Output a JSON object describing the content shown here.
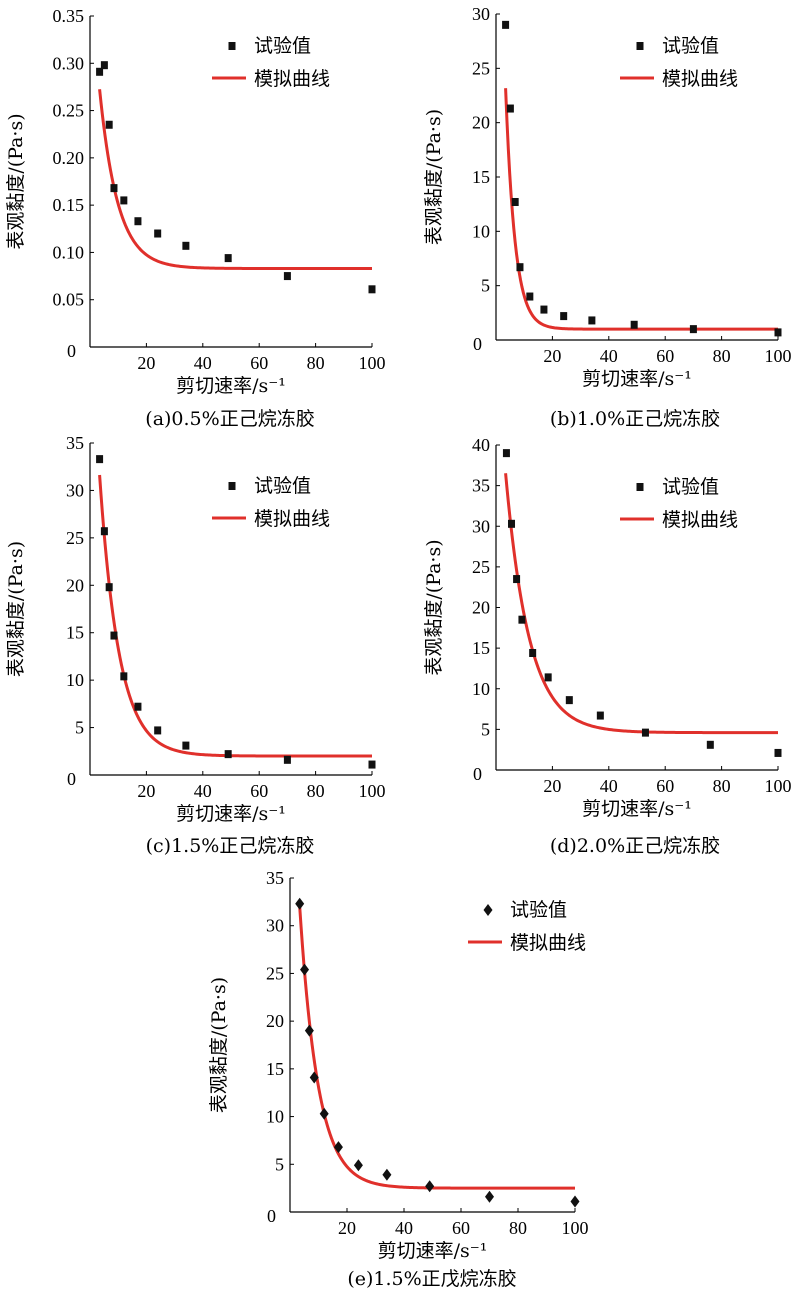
{
  "chart_data": [
    {
      "id": "a",
      "type": "scatter",
      "title": "",
      "caption": "(a)0.5%正己烷冻胶",
      "xlabel": "剪切速率/s⁻¹",
      "ylabel": "表观黏度/(Pa·s)",
      "xlim": [
        0,
        100
      ],
      "ylim": [
        0,
        0.35
      ],
      "xticks": [
        20,
        40,
        60,
        80,
        100
      ],
      "xtick_labels": [
        "20",
        "40",
        "60",
        "80",
        "100"
      ],
      "yticks": [
        0.05,
        0.1,
        0.15,
        0.2,
        0.25,
        0.3,
        0.35
      ],
      "ytick_labels": [
        "0.05",
        "0.10",
        "0.15",
        "0.20",
        "0.25",
        "0.30",
        "0.35"
      ],
      "origin_label": "0",
      "marker": "square",
      "series": [
        {
          "name": "试验值",
          "kind": "points",
          "x": [
            3.4,
            5.1,
            6.8,
            8.5,
            12.0,
            17.0,
            24.0,
            34.0,
            49.0,
            70.0,
            100.0
          ],
          "y": [
            0.291,
            0.298,
            0.235,
            0.168,
            0.155,
            0.133,
            0.12,
            0.107,
            0.094,
            0.075,
            0.061
          ]
        },
        {
          "name": "模拟曲线",
          "kind": "fit",
          "color": "#e0302b",
          "model": {
            "a": 0.083,
            "b": 0.321,
            "c": 0.155
          },
          "x_range": [
            3.4,
            100
          ]
        }
      ],
      "legend": [
        "试验值",
        "模拟曲线"
      ]
    },
    {
      "id": "b",
      "type": "scatter",
      "title": "",
      "caption": "(b)1.0%正己烷冻胶",
      "xlabel": "剪切速率/s⁻¹",
      "ylabel": "表观黏度/(Pa·s)",
      "xlim": [
        0,
        100
      ],
      "ylim": [
        0,
        30
      ],
      "xticks": [
        20,
        40,
        60,
        80,
        100
      ],
      "xtick_labels": [
        "20",
        "40",
        "60",
        "80",
        "100"
      ],
      "yticks": [
        5,
        10,
        15,
        20,
        25,
        30
      ],
      "ytick_labels": [
        "5",
        "10",
        "15",
        "20",
        "25",
        "30"
      ],
      "origin_label": "0",
      "marker": "square",
      "series": [
        {
          "name": "试验值",
          "kind": "points",
          "x": [
            3.4,
            5.1,
            6.8,
            8.5,
            12.0,
            17.0,
            24.0,
            34.0,
            49.0,
            70.0,
            100.0
          ],
          "y": [
            29.0,
            21.3,
            12.7,
            6.7,
            4.0,
            2.8,
            2.2,
            1.8,
            1.4,
            1.0,
            0.7
          ]
        },
        {
          "name": "模拟曲线",
          "kind": "fit",
          "color": "#e0302b",
          "model": {
            "a": 1.0,
            "b": 61.5,
            "c": 0.3
          },
          "x_range": [
            3.4,
            100
          ]
        }
      ],
      "legend": [
        "试验值",
        "模拟曲线"
      ]
    },
    {
      "id": "c",
      "type": "scatter",
      "title": "",
      "caption": "(c)1.5%正己烷冻胶",
      "xlabel": "剪切速率/s⁻¹",
      "ylabel": "表观黏度/(Pa·s)",
      "xlim": [
        0,
        100
      ],
      "ylim": [
        0,
        35
      ],
      "xticks": [
        20,
        40,
        60,
        80,
        100
      ],
      "xtick_labels": [
        "20",
        "40",
        "60",
        "80",
        "100"
      ],
      "yticks": [
        5,
        10,
        15,
        20,
        25,
        30,
        35
      ],
      "ytick_labels": [
        "5",
        "10",
        "15",
        "20",
        "25",
        "30",
        "35"
      ],
      "origin_label": "0",
      "marker": "square",
      "series": [
        {
          "name": "试验值",
          "kind": "points",
          "x": [
            3.4,
            5.1,
            6.8,
            8.5,
            12.0,
            17.0,
            24.0,
            34.0,
            49.0,
            70.0,
            100.0
          ],
          "y": [
            33.3,
            25.7,
            19.8,
            14.7,
            10.4,
            7.2,
            4.7,
            3.1,
            2.2,
            1.6,
            1.1
          ]
        },
        {
          "name": "模拟曲线",
          "kind": "fit",
          "color": "#e0302b",
          "model": {
            "a": 2.0,
            "b": 48.5,
            "c": 0.145
          },
          "x_range": [
            3.4,
            100
          ]
        }
      ],
      "legend": [
        "试验值",
        "模拟曲线"
      ]
    },
    {
      "id": "d",
      "type": "scatter",
      "title": "",
      "caption": "(d)2.0%正己烷冻胶",
      "xlabel": "剪切速率/s⁻¹",
      "ylabel": "表观黏度/(Pa·s)",
      "xlim": [
        0,
        100
      ],
      "ylim": [
        0,
        40
      ],
      "xticks": [
        20,
        40,
        60,
        80,
        100
      ],
      "xtick_labels": [
        "20",
        "40",
        "60",
        "80",
        "100"
      ],
      "yticks": [
        5,
        10,
        15,
        20,
        25,
        30,
        35,
        40
      ],
      "ytick_labels": [
        "5",
        "10",
        "15",
        "20",
        "25",
        "30",
        "35",
        "40"
      ],
      "origin_label": "0",
      "marker": "square",
      "series": [
        {
          "name": "试验值",
          "kind": "points",
          "x": [
            3.7,
            5.5,
            7.3,
            9.2,
            13.0,
            18.5,
            26.0,
            37.0,
            53.0,
            76.0,
            100.0
          ],
          "y": [
            39.0,
            30.3,
            23.5,
            18.5,
            14.4,
            11.4,
            8.6,
            6.7,
            4.6,
            3.1,
            2.1
          ]
        },
        {
          "name": "模拟曲线",
          "kind": "fit",
          "color": "#e0302b",
          "model": {
            "a": 4.6,
            "b": 48.0,
            "c": 0.12
          },
          "x_range": [
            3.4,
            100
          ]
        }
      ],
      "legend": [
        "试验值",
        "模拟曲线"
      ]
    },
    {
      "id": "e",
      "type": "scatter",
      "title": "",
      "caption": "(e)1.5%正戊烷冻胶",
      "xlabel": "剪切速率/s⁻¹",
      "ylabel": "表观黏度/(Pa·s)",
      "xlim": [
        0,
        100
      ],
      "ylim": [
        0,
        35
      ],
      "xticks": [
        20,
        40,
        60,
        80,
        100
      ],
      "xtick_labels": [
        "20",
        "40",
        "60",
        "80",
        "100"
      ],
      "yticks": [
        5,
        10,
        15,
        20,
        25,
        30,
        35
      ],
      "ytick_labels": [
        "5",
        "10",
        "15",
        "20",
        "25",
        "30",
        "35"
      ],
      "origin_label": "0",
      "marker": "diamond",
      "series": [
        {
          "name": "试验值",
          "kind": "points",
          "x": [
            3.4,
            5.1,
            6.8,
            8.5,
            12.0,
            17.0,
            24.0,
            34.0,
            49.0,
            70.0,
            100.0
          ],
          "y": [
            32.3,
            25.4,
            19.0,
            14.1,
            10.3,
            6.8,
            4.9,
            3.9,
            2.7,
            1.6,
            1.1
          ]
        },
        {
          "name": "模拟曲线",
          "kind": "fit",
          "color": "#e0302b",
          "model": {
            "a": 2.5,
            "b": 50.0,
            "c": 0.155
          },
          "x_range": [
            3.4,
            100
          ]
        }
      ],
      "legend": [
        "试验值",
        "模拟曲线"
      ]
    }
  ]
}
